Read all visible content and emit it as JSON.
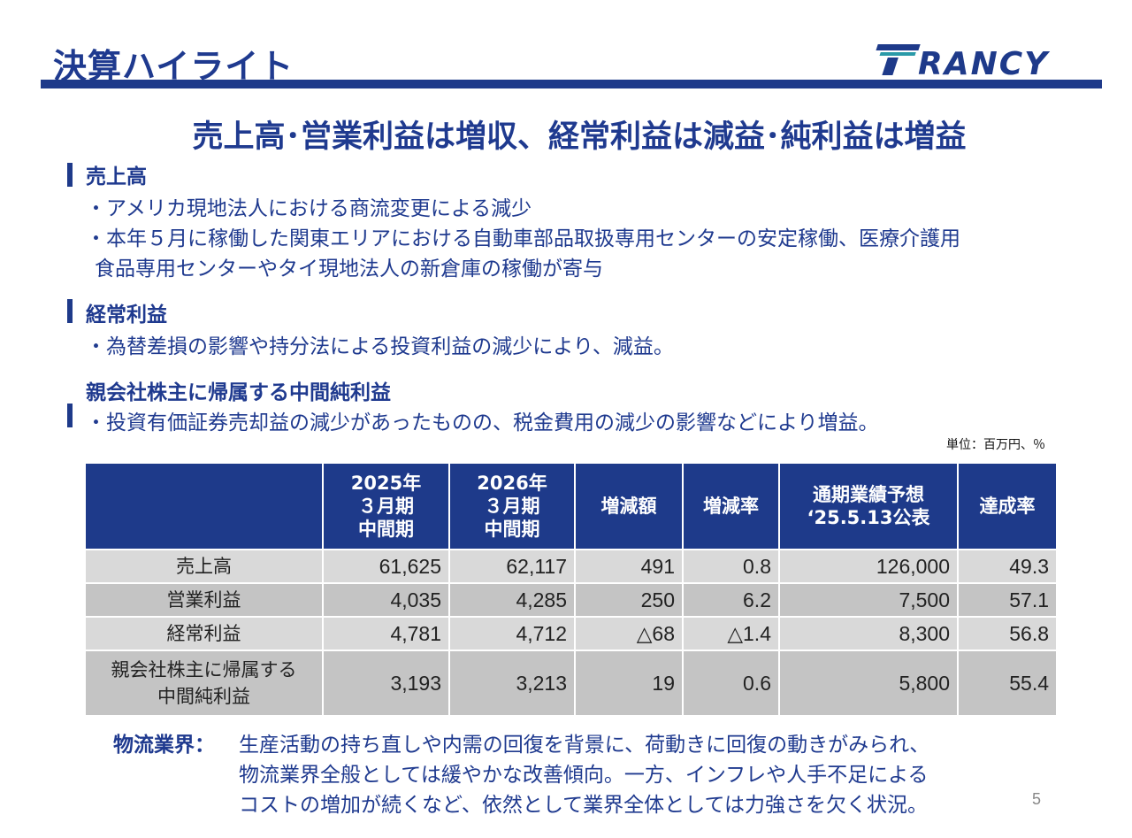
{
  "header": {
    "title": "決算ハイライト",
    "logo_text": "TRANCY"
  },
  "headline": "売上高･営業利益は増収、経常利益は減益･純利益は増益",
  "sections": [
    {
      "title": "売上高",
      "bullets": [
        "・アメリカ現地法人における商流変更による減少",
        "・本年５月に稼働した関東エリアにおける自動車部品取扱専用センターの安定稼働、医療介護用",
        "食品専用センターやタイ現地法人の新倉庫の稼働が寄与"
      ]
    },
    {
      "title": "経常利益",
      "bullets": [
        "・為替差損の影響や持分法による投資利益の減少により、減益。"
      ]
    },
    {
      "title": "親会社株主に帰属する中間純利益",
      "bullets": [
        "・投資有価証券売却益の減少があったものの、税金費用の減少の影響などにより増益。"
      ]
    }
  ],
  "unit_note": "単位：百万円、％",
  "table": {
    "headers": [
      [
        "",
        "",
        ""
      ],
      [
        "2025年",
        "３月期",
        "中間期"
      ],
      [
        "2026年",
        "３月期",
        "中間期"
      ],
      [
        "増減額",
        "",
        ""
      ],
      [
        "増減率",
        "",
        ""
      ],
      [
        "通期業績予想",
        "‘25.5.13公表",
        ""
      ],
      [
        "達成率",
        "",
        ""
      ]
    ],
    "rows": [
      {
        "label": [
          "売上高",
          ""
        ],
        "values": [
          "61,625",
          "62,117",
          "491",
          "0.8",
          "126,000",
          "49.3"
        ]
      },
      {
        "label": [
          "営業利益",
          ""
        ],
        "values": [
          "4,035",
          "4,285",
          "250",
          "6.2",
          "7,500",
          "57.1"
        ]
      },
      {
        "label": [
          "経常利益",
          ""
        ],
        "values": [
          "4,781",
          "4,712",
          "△68",
          "△1.4",
          "8,300",
          "56.8"
        ]
      },
      {
        "label": [
          "親会社株主に帰属する",
          "中間純利益"
        ],
        "values": [
          "3,193",
          "3,213",
          "19",
          "0.6",
          "5,800",
          "55.4"
        ]
      }
    ]
  },
  "footer": {
    "label": "物流業界：",
    "lines": [
      "生産活動の持ち直しや内需の回復を背景に、荷動きに回復の動きがみられ、",
      "物流業界全般としては緩やかな改善傾向。一方、インフレや人手不足による",
      "コストの増加が続くなど、依然として業界全体としては力強さを欠く状況。"
    ]
  },
  "page_number": "5",
  "colors": {
    "navy": "#1e3a8a",
    "logo_teal": "#2a9aa8",
    "row_light": "#d9d9d9",
    "row_dark": "#c4c4c4"
  }
}
